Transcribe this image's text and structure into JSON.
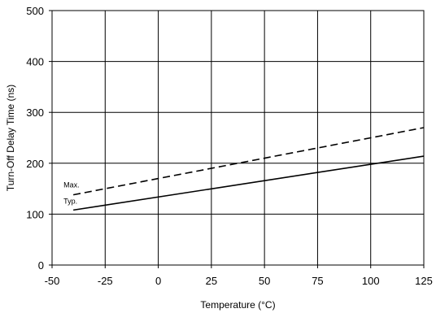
{
  "chart_data": {
    "type": "line",
    "title": "",
    "xlabel": "Temperature (°C)",
    "ylabel": "Turn-Off Delay Time (ns)",
    "xlim": [
      -50,
      125
    ],
    "ylim": [
      0,
      500
    ],
    "xticks": [
      -50,
      -25,
      0,
      25,
      50,
      75,
      100,
      125
    ],
    "yticks": [
      0,
      100,
      200,
      300,
      400,
      500
    ],
    "xtick_labels": [
      "-50",
      "-25",
      "0",
      "25",
      "50",
      "75",
      "100",
      "125"
    ],
    "ytick_labels": [
      "0",
      "100",
      "200",
      "300",
      "400",
      "500"
    ],
    "grid": true,
    "series": [
      {
        "name": "Max.",
        "style": "dashed",
        "color": "#000000",
        "x": [
          -40,
          125
        ],
        "y": [
          138,
          270
        ]
      },
      {
        "name": "Typ.",
        "style": "solid",
        "color": "#000000",
        "x": [
          -40,
          125
        ],
        "y": [
          108,
          214
        ]
      }
    ]
  }
}
